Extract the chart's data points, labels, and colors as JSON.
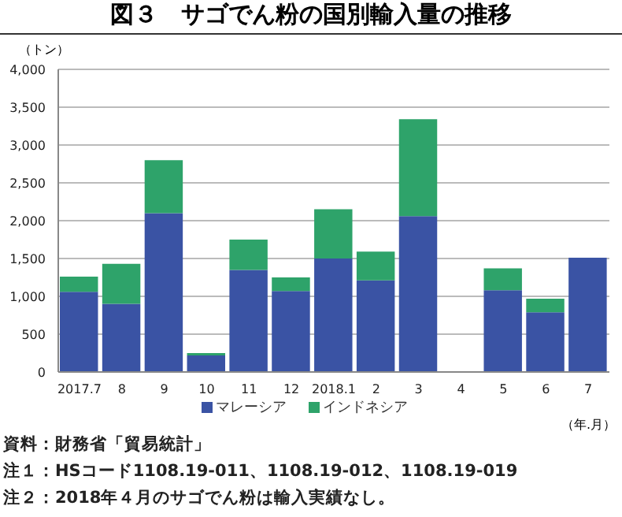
{
  "chart_data": {
    "type": "bar",
    "title": "図３　サゴでん粉の国別輸入量の推移",
    "ylabel": "（トン）",
    "xlabel": "（年.月）",
    "categories": [
      "2017.7",
      "8",
      "9",
      "10",
      "11",
      "12",
      "2018.1",
      "2",
      "3",
      "4",
      "5",
      "6",
      "7"
    ],
    "series": [
      {
        "name": "マレーシア",
        "color": "#3a53a4",
        "values": [
          1060,
          900,
          2100,
          220,
          1350,
          1070,
          1500,
          1210,
          2060,
          null,
          1080,
          790,
          1510
        ]
      },
      {
        "name": "インドネシア",
        "color": "#2ea36a",
        "values": [
          200,
          530,
          700,
          30,
          400,
          180,
          650,
          380,
          1280,
          null,
          290,
          180,
          0
        ]
      }
    ],
    "stacked": true,
    "ylim": [
      0,
      4000
    ],
    "yticks": [
      {
        "value": 0,
        "label": "0"
      },
      {
        "value": 500,
        "label": "500"
      },
      {
        "value": 1000,
        "label": "1,000"
      },
      {
        "value": 1500,
        "label": "1,500"
      },
      {
        "value": 2000,
        "label": "2,000"
      },
      {
        "value": 2500,
        "label": "2,500"
      },
      {
        "value": 3000,
        "label": "3,000"
      },
      {
        "value": 3500,
        "label": "3,500"
      },
      {
        "value": 4000,
        "label": "4,000"
      }
    ],
    "grid": "y",
    "legend": "bottom",
    "annotations": [
      "資料：財務省「貿易統計」",
      "注１：HSコード1108.19-011、1108.19-012、1108.19-019",
      "注２：2018年４月のサゴでん粉は輸入実績なし。"
    ]
  }
}
